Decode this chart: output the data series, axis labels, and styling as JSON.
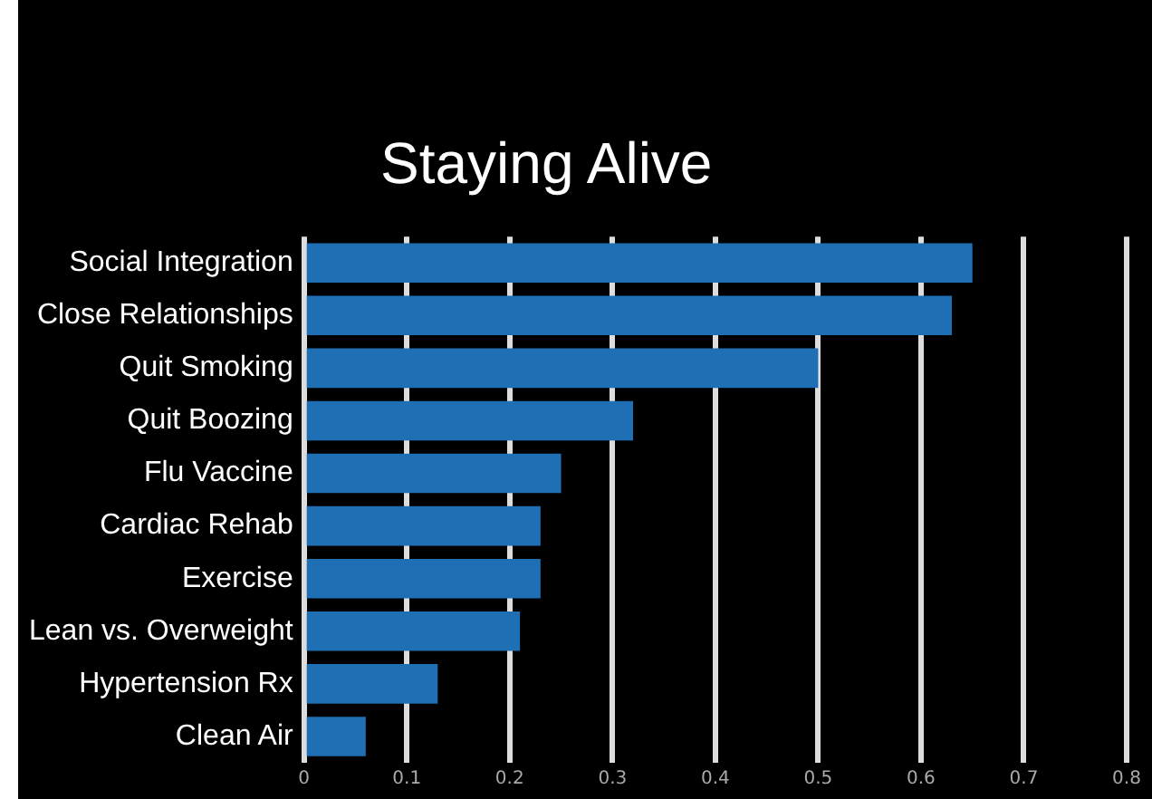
{
  "chart_data": {
    "type": "bar",
    "orientation": "horizontal",
    "title": "Staying Alive",
    "categories": [
      "Social Integration",
      "Close Relationships",
      "Quit Smoking",
      "Quit Boozing",
      "Flu Vaccine",
      "Cardiac Rehab",
      "Exercise",
      "Lean vs. Overweight",
      "Hypertension Rx",
      "Clean Air"
    ],
    "values": [
      0.65,
      0.63,
      0.5,
      0.32,
      0.25,
      0.23,
      0.23,
      0.21,
      0.13,
      0.06
    ],
    "color": "#1f6fb5",
    "xlim": [
      0,
      0.8
    ],
    "xticks": [
      0,
      0.1,
      0.2,
      0.3,
      0.4,
      0.5,
      0.6,
      0.7,
      0.8
    ],
    "grid": "x",
    "legend": false
  }
}
